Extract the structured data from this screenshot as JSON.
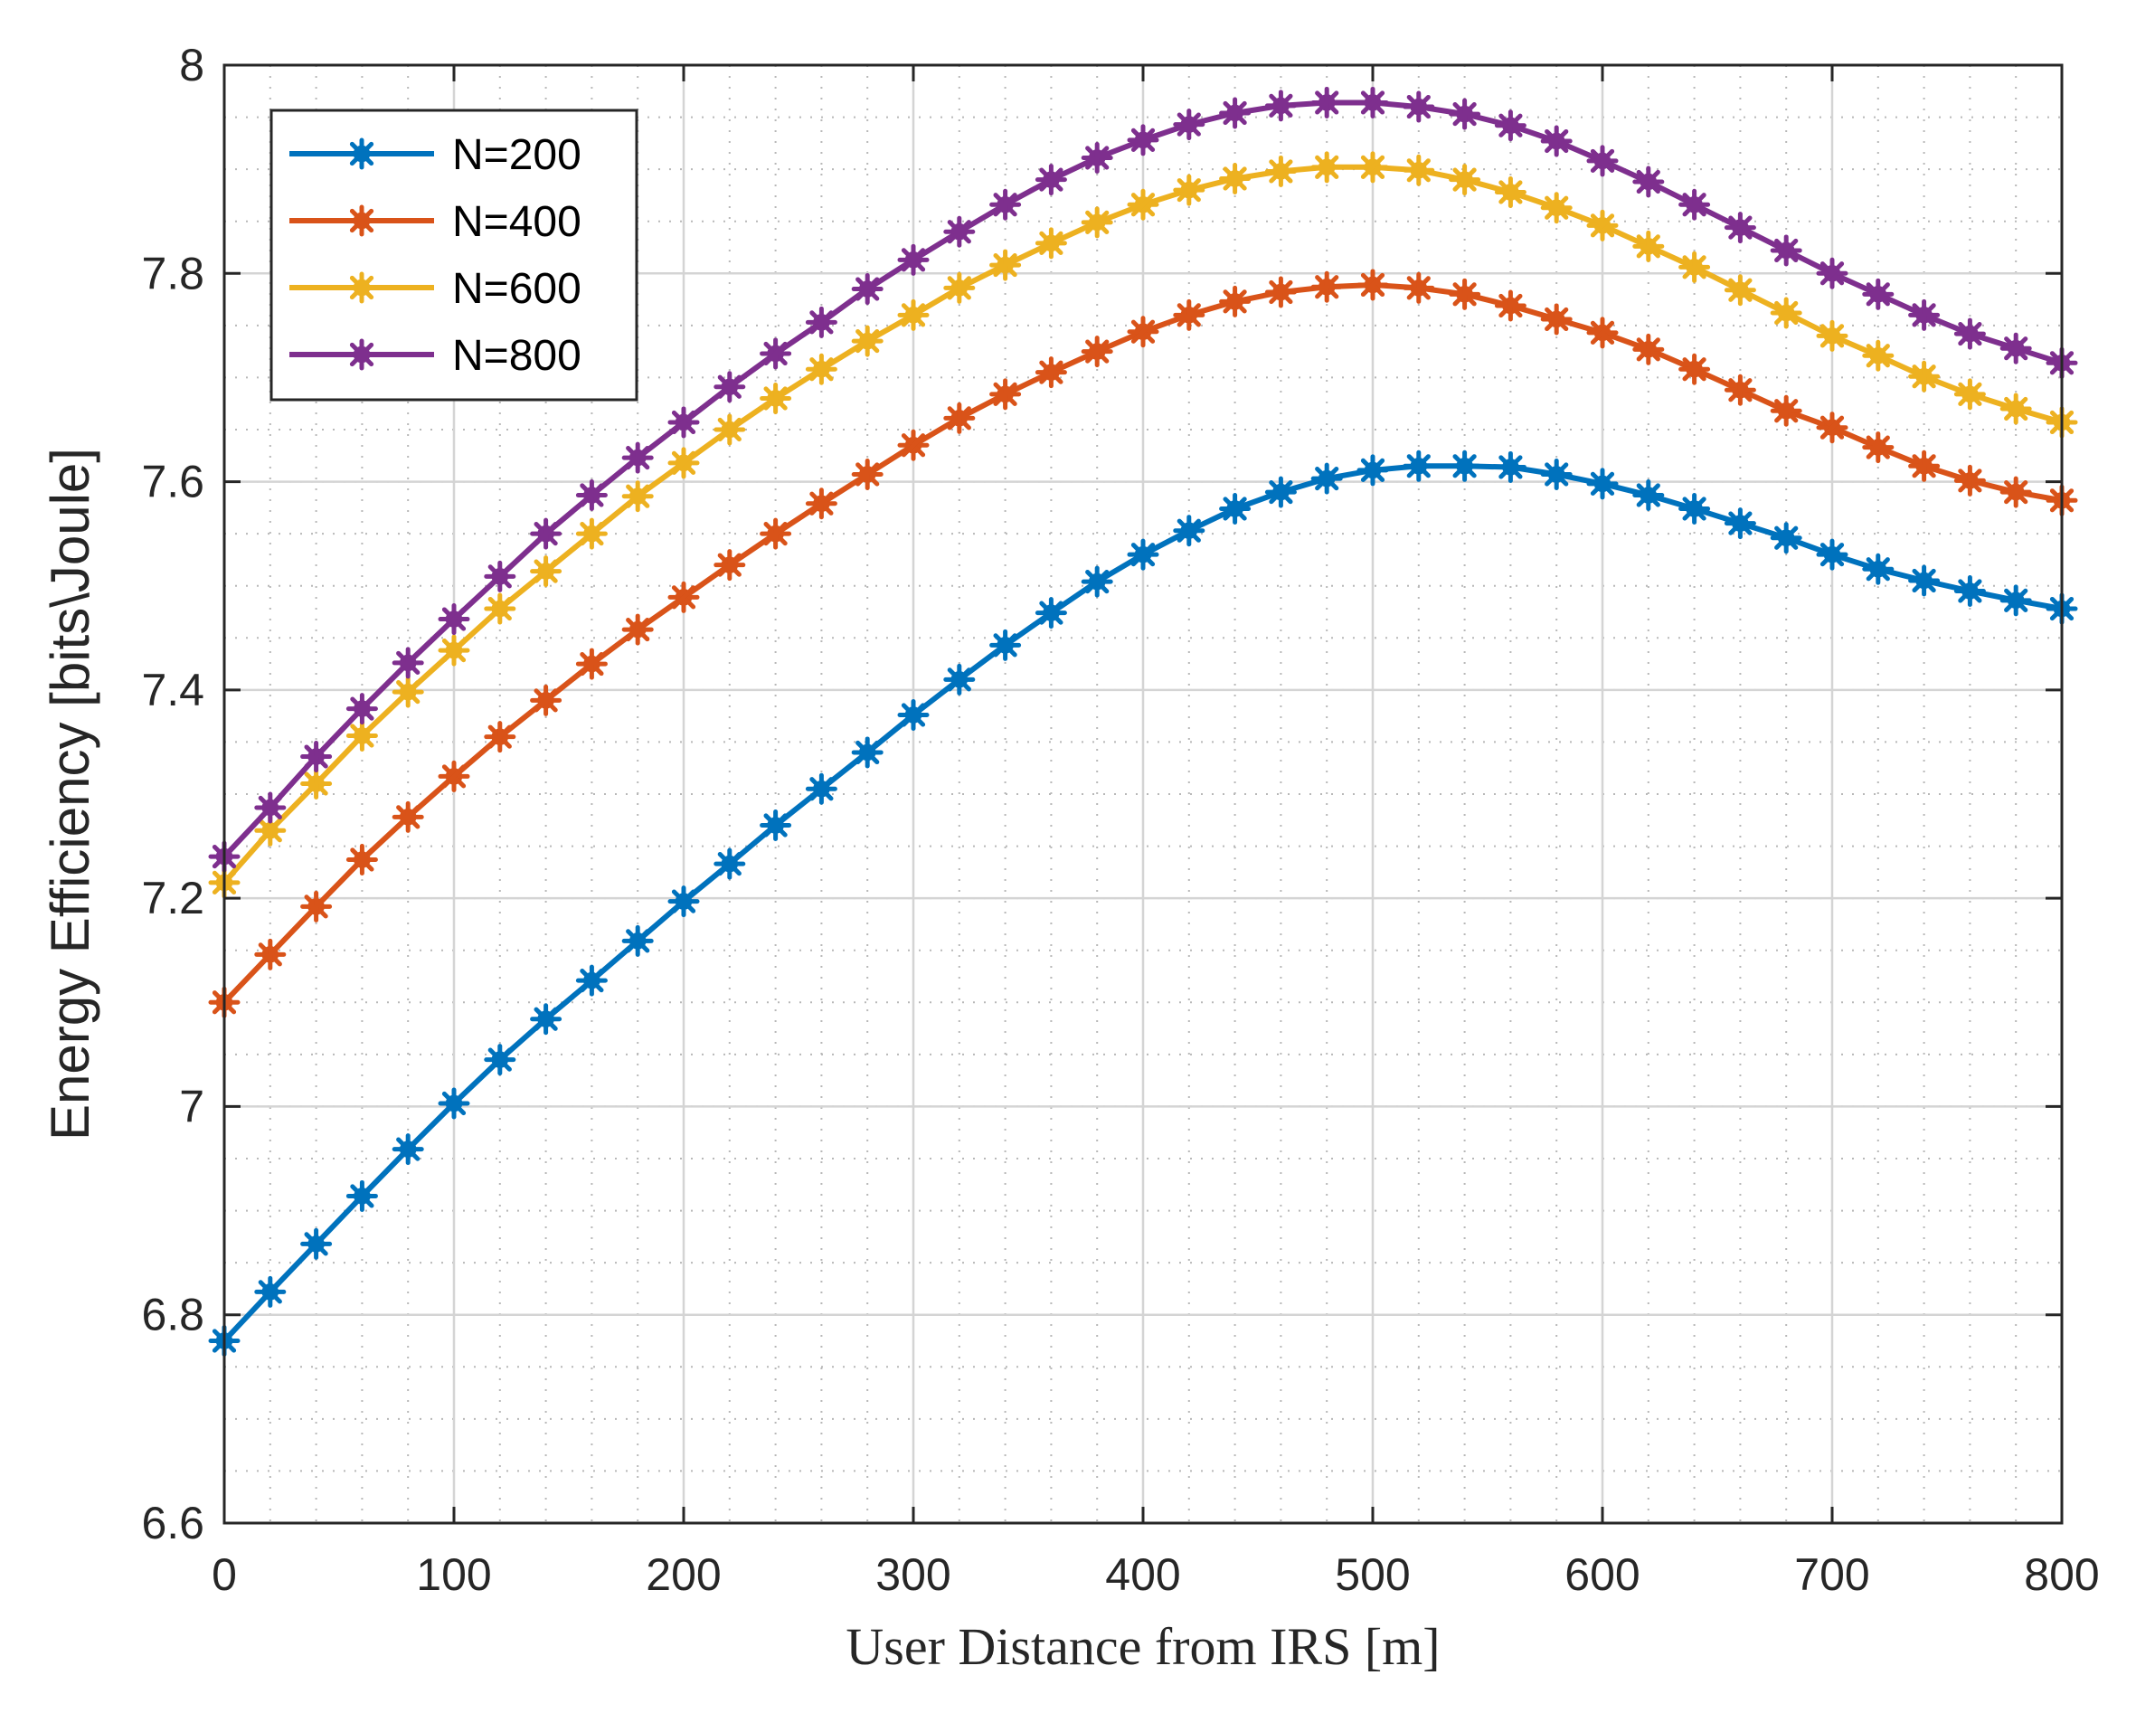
{
  "chart_data": {
    "type": "line",
    "title": "",
    "xlabel": "User Distance from IRS [m]",
    "ylabel": "Energy Efficiency [bits\\Joule]",
    "xlim": [
      0,
      800
    ],
    "ylim": [
      6.6,
      8
    ],
    "xticks": [
      0,
      100,
      200,
      300,
      400,
      500,
      600,
      700,
      800
    ],
    "xtick_labels": [
      "0",
      "100",
      "200",
      "300",
      "400",
      "500",
      "600",
      "700",
      "800"
    ],
    "yticks": [
      6.6,
      6.8,
      7,
      7.2,
      7.4,
      7.6,
      7.8,
      8
    ],
    "ytick_labels": [
      "6.6",
      "6.8",
      "7",
      "7.2",
      "7.4",
      "7.6",
      "7.8",
      "8"
    ],
    "grid": true,
    "minor_grid": true,
    "legend_position": "top-left",
    "x": [
      0,
      20,
      40,
      60,
      80,
      100,
      120,
      140,
      160,
      180,
      200,
      220,
      240,
      260,
      280,
      300,
      320,
      340,
      360,
      380,
      400,
      420,
      440,
      460,
      480,
      500,
      520,
      540,
      560,
      580,
      600,
      620,
      640,
      660,
      680,
      700,
      720,
      740,
      760,
      780,
      800
    ],
    "series": [
      {
        "name": "N=200",
        "color": "#0072BD",
        "values": [
          6.775,
          6.822,
          6.868,
          6.914,
          6.959,
          7.003,
          7.045,
          7.084,
          7.121,
          7.159,
          7.197,
          7.233,
          7.27,
          7.305,
          7.34,
          7.376,
          7.41,
          7.443,
          7.474,
          7.504,
          7.53,
          7.553,
          7.574,
          7.59,
          7.603,
          7.611,
          7.615,
          7.615,
          7.614,
          7.607,
          7.598,
          7.587,
          7.574,
          7.56,
          7.546,
          7.53,
          7.516,
          7.505,
          7.495,
          7.486,
          7.478
        ]
      },
      {
        "name": "N=400",
        "color": "#D95319",
        "values": [
          7.1,
          7.146,
          7.192,
          7.237,
          7.278,
          7.317,
          7.355,
          7.39,
          7.425,
          7.458,
          7.489,
          7.52,
          7.55,
          7.579,
          7.607,
          7.635,
          7.661,
          7.684,
          7.705,
          7.725,
          7.744,
          7.76,
          7.773,
          7.782,
          7.787,
          7.789,
          7.786,
          7.78,
          7.769,
          7.756,
          7.743,
          7.727,
          7.708,
          7.688,
          7.668,
          7.652,
          7.633,
          7.615,
          7.601,
          7.59,
          7.582
        ]
      },
      {
        "name": "N=600",
        "color": "#EDB120",
        "values": [
          7.215,
          7.265,
          7.31,
          7.356,
          7.398,
          7.438,
          7.478,
          7.514,
          7.55,
          7.586,
          7.618,
          7.65,
          7.68,
          7.708,
          7.735,
          7.76,
          7.786,
          7.808,
          7.829,
          7.849,
          7.866,
          7.88,
          7.891,
          7.898,
          7.902,
          7.902,
          7.899,
          7.89,
          7.878,
          7.863,
          7.846,
          7.826,
          7.806,
          7.784,
          7.762,
          7.74,
          7.721,
          7.701,
          7.684,
          7.67,
          7.657
        ]
      },
      {
        "name": "N=800",
        "color": "#7E2F8E",
        "values": [
          7.24,
          7.287,
          7.336,
          7.382,
          7.426,
          7.468,
          7.509,
          7.55,
          7.587,
          7.623,
          7.657,
          7.691,
          7.723,
          7.753,
          7.785,
          7.813,
          7.84,
          7.866,
          7.89,
          7.911,
          7.928,
          7.943,
          7.954,
          7.961,
          7.964,
          7.964,
          7.96,
          7.953,
          7.942,
          7.927,
          7.908,
          7.888,
          7.866,
          7.844,
          7.822,
          7.8,
          7.78,
          7.76,
          7.742,
          7.728,
          7.714
        ]
      }
    ]
  }
}
